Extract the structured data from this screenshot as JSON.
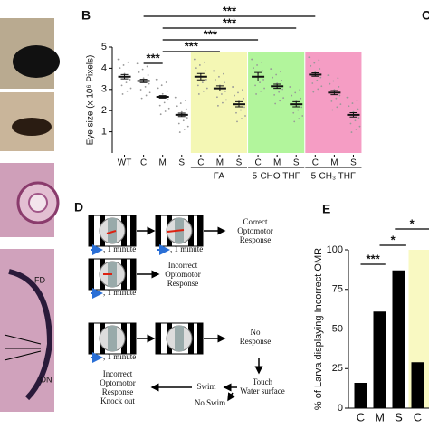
{
  "panels": {
    "b": "B",
    "c": "C",
    "d": "D",
    "e": "E"
  },
  "image_labels": {
    "fd": "FD",
    "on": "ON"
  },
  "chart_data": [
    {
      "type": "dot",
      "y_label": "Eye size (x 10⁶ Pixels)",
      "categories": [
        "WT",
        "C",
        "M",
        "S",
        "C",
        "M",
        "S",
        "C",
        "M",
        "S",
        "C",
        "M",
        "S"
      ],
      "values": [
        3.6,
        3.4,
        2.65,
        1.8,
        3.6,
        3.05,
        2.3,
        3.6,
        3.15,
        2.3,
        3.7,
        2.85,
        1.8
      ],
      "errors": [
        0.1,
        0.08,
        0.06,
        0.08,
        0.15,
        0.12,
        0.12,
        0.2,
        0.1,
        0.12,
        0.08,
        0.1,
        0.1
      ],
      "color": "#111111",
      "groups": [
        {
          "label": "FA",
          "color": "#f4f7b4"
        },
        {
          "label": "5-CHO THF",
          "color": "#b2f59c"
        },
        {
          "label": "5-CH₃ THF",
          "color": "#f59dc4"
        }
      ],
      "annotations": [
        "***",
        "***",
        "***",
        "***",
        "***"
      ],
      "ylim": [
        0,
        5
      ],
      "yticks": [
        1,
        2,
        3,
        4,
        5
      ]
    },
    {
      "type": "bar",
      "y_label": "% of Larva displaying Incorrect OMR",
      "categories": [
        "C",
        "M",
        "S",
        "C"
      ],
      "values": [
        16,
        61,
        87,
        29
      ],
      "color": "#000000",
      "highlight": {
        "color": "#f9f9c2"
      },
      "annotations": [
        "***",
        "*",
        "*"
      ],
      "ylim": [
        0,
        100
      ],
      "yticks": [
        0,
        25,
        50,
        75,
        100
      ]
    }
  ],
  "diagram": {
    "correct": [
      "Correct",
      "Optomotor",
      "Response"
    ],
    "incorrect": [
      "Incorrect",
      "Optomotor",
      "Response"
    ],
    "no_response": [
      "No",
      "Response"
    ],
    "touch": [
      "Touch",
      "Water surface"
    ],
    "swim": "Swim",
    "no_swim": "No Swim",
    "knockout": [
      "Incorrect",
      "Optomotor",
      "Response",
      "Knock out"
    ],
    "minute": [
      ", 1 minute",
      ", 1 minute",
      ", 1 minute",
      ", 1 minute"
    ]
  }
}
